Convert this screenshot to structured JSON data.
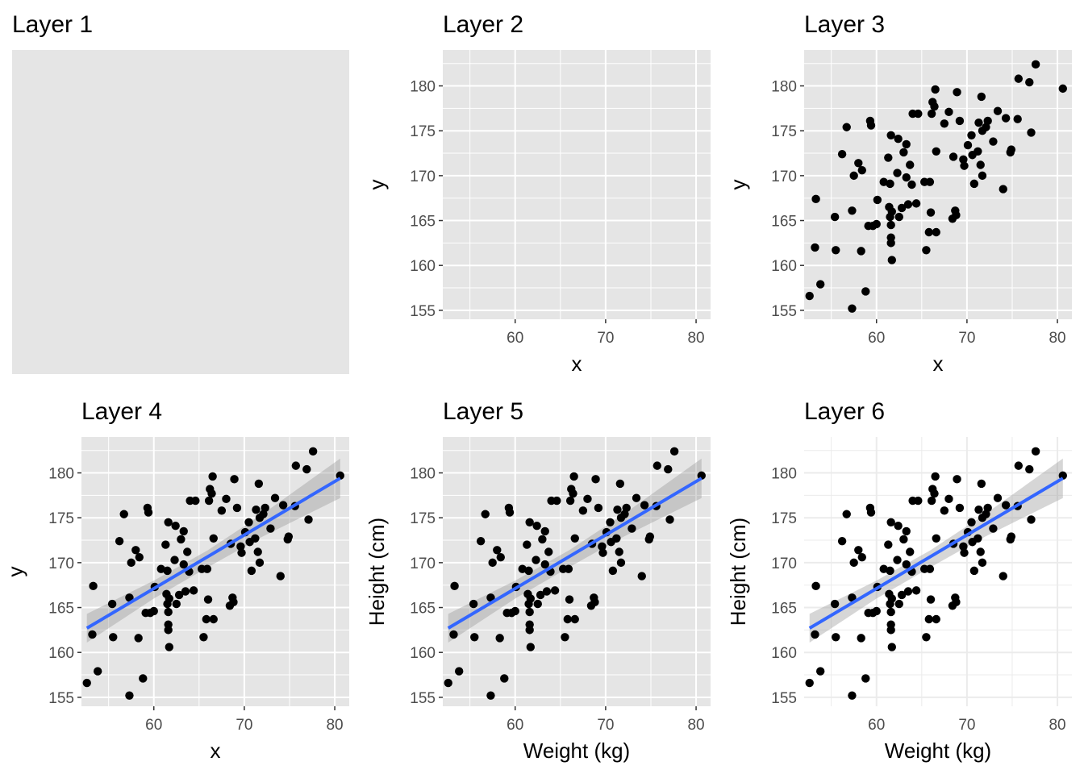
{
  "chart_data": {
    "type": "scatter",
    "x_ticks": [
      60,
      70,
      80
    ],
    "y_ticks": [
      155,
      160,
      165,
      170,
      175,
      180
    ],
    "xlim": [
      52,
      81.6
    ],
    "ylim": [
      154,
      184
    ],
    "points": [
      {
        "x": 52.6,
        "y": 156.6
      },
      {
        "x": 53.2,
        "y": 162.0
      },
      {
        "x": 53.3,
        "y": 167.4
      },
      {
        "x": 53.8,
        "y": 157.9
      },
      {
        "x": 55.4,
        "y": 165.4
      },
      {
        "x": 55.5,
        "y": 161.7
      },
      {
        "x": 56.2,
        "y": 172.4
      },
      {
        "x": 56.7,
        "y": 175.4
      },
      {
        "x": 57.3,
        "y": 155.2
      },
      {
        "x": 57.3,
        "y": 166.1
      },
      {
        "x": 57.5,
        "y": 170.0
      },
      {
        "x": 58.0,
        "y": 171.4
      },
      {
        "x": 58.3,
        "y": 161.6
      },
      {
        "x": 58.4,
        "y": 170.6
      },
      {
        "x": 58.8,
        "y": 157.1
      },
      {
        "x": 59.1,
        "y": 164.4
      },
      {
        "x": 59.3,
        "y": 176.1
      },
      {
        "x": 59.4,
        "y": 175.6
      },
      {
        "x": 59.6,
        "y": 164.4
      },
      {
        "x": 60.0,
        "y": 164.6
      },
      {
        "x": 60.1,
        "y": 167.3
      },
      {
        "x": 60.8,
        "y": 169.3
      },
      {
        "x": 61.3,
        "y": 172.0
      },
      {
        "x": 61.4,
        "y": 166.5
      },
      {
        "x": 61.5,
        "y": 165.4
      },
      {
        "x": 61.6,
        "y": 164.5
      },
      {
        "x": 61.6,
        "y": 163.1
      },
      {
        "x": 61.6,
        "y": 162.5
      },
      {
        "x": 61.7,
        "y": 160.6
      },
      {
        "x": 61.6,
        "y": 174.5
      },
      {
        "x": 61.5,
        "y": 169.1
      },
      {
        "x": 61.7,
        "y": 166.0
      },
      {
        "x": 62.4,
        "y": 174.1
      },
      {
        "x": 62.3,
        "y": 170.3
      },
      {
        "x": 62.5,
        "y": 165.4
      },
      {
        "x": 62.8,
        "y": 166.4
      },
      {
        "x": 63.0,
        "y": 172.6
      },
      {
        "x": 63.3,
        "y": 173.5
      },
      {
        "x": 63.3,
        "y": 169.8
      },
      {
        "x": 63.5,
        "y": 166.8
      },
      {
        "x": 63.7,
        "y": 171.2
      },
      {
        "x": 63.9,
        "y": 169.0
      },
      {
        "x": 64.0,
        "y": 176.9
      },
      {
        "x": 64.4,
        "y": 166.9
      },
      {
        "x": 64.6,
        "y": 176.9
      },
      {
        "x": 65.3,
        "y": 169.3
      },
      {
        "x": 65.5,
        "y": 161.7
      },
      {
        "x": 65.8,
        "y": 163.7
      },
      {
        "x": 65.9,
        "y": 169.3
      },
      {
        "x": 66.0,
        "y": 165.9
      },
      {
        "x": 66.1,
        "y": 176.9
      },
      {
        "x": 66.2,
        "y": 178.2
      },
      {
        "x": 66.4,
        "y": 177.7
      },
      {
        "x": 66.5,
        "y": 179.6
      },
      {
        "x": 66.6,
        "y": 172.7
      },
      {
        "x": 66.6,
        "y": 163.7
      },
      {
        "x": 67.5,
        "y": 175.8
      },
      {
        "x": 68.0,
        "y": 177.1
      },
      {
        "x": 68.4,
        "y": 165.2
      },
      {
        "x": 68.5,
        "y": 172.1
      },
      {
        "x": 68.7,
        "y": 166.1
      },
      {
        "x": 68.8,
        "y": 165.6
      },
      {
        "x": 68.9,
        "y": 179.3
      },
      {
        "x": 69.2,
        "y": 176.1
      },
      {
        "x": 69.6,
        "y": 171.8
      },
      {
        "x": 69.7,
        "y": 171.1
      },
      {
        "x": 70.1,
        "y": 173.4
      },
      {
        "x": 70.5,
        "y": 174.5
      },
      {
        "x": 70.6,
        "y": 172.3
      },
      {
        "x": 70.8,
        "y": 169.1
      },
      {
        "x": 71.2,
        "y": 172.7
      },
      {
        "x": 71.3,
        "y": 175.9
      },
      {
        "x": 71.5,
        "y": 171.2
      },
      {
        "x": 71.6,
        "y": 178.8
      },
      {
        "x": 71.7,
        "y": 170.0
      },
      {
        "x": 71.7,
        "y": 175.0
      },
      {
        "x": 72.1,
        "y": 175.4
      },
      {
        "x": 72.3,
        "y": 176.1
      },
      {
        "x": 72.9,
        "y": 173.8
      },
      {
        "x": 73.4,
        "y": 177.2
      },
      {
        "x": 74.0,
        "y": 168.5
      },
      {
        "x": 74.3,
        "y": 176.4
      },
      {
        "x": 74.8,
        "y": 172.6
      },
      {
        "x": 74.9,
        "y": 172.9
      },
      {
        "x": 75.6,
        "y": 176.3
      },
      {
        "x": 75.7,
        "y": 180.8
      },
      {
        "x": 76.9,
        "y": 180.4
      },
      {
        "x": 77.1,
        "y": 174.8
      },
      {
        "x": 77.6,
        "y": 182.4
      },
      {
        "x": 80.6,
        "y": 179.7
      }
    ],
    "fit": {
      "x": [
        52.6,
        80.6
      ],
      "y": [
        162.7,
        179.4
      ]
    },
    "band": {
      "x": [
        52.6,
        60,
        66,
        72,
        80.6
      ],
      "lower": [
        161.1,
        166.0,
        169.5,
        172.9,
        177.2
      ],
      "upper": [
        164.3,
        168.0,
        171.4,
        175.4,
        181.6
      ]
    },
    "colors": {
      "panel": "#e5e5e5",
      "grid": "#ffffff",
      "classic_grid": "#ebebeb",
      "point": "#000000",
      "fit_line": "#3366ff",
      "band": "#999999",
      "axis_text": "#4d4d4d"
    },
    "panels": [
      {
        "title": "Layer 1",
        "xlabel": "",
        "ylabel": "",
        "show_axes": false,
        "show_points": false,
        "show_fit": false,
        "theme": "gray"
      },
      {
        "title": "Layer 2",
        "xlabel": "x",
        "ylabel": "y",
        "show_axes": true,
        "show_points": false,
        "show_fit": false,
        "theme": "gray"
      },
      {
        "title": "Layer 3",
        "xlabel": "x",
        "ylabel": "y",
        "show_axes": true,
        "show_points": true,
        "show_fit": false,
        "theme": "gray"
      },
      {
        "title": "Layer 4",
        "xlabel": "x",
        "ylabel": "y",
        "show_axes": true,
        "show_points": true,
        "show_fit": true,
        "theme": "gray"
      },
      {
        "title": "Layer 5",
        "xlabel": "Weight (kg)",
        "ylabel": "Height (cm)",
        "show_axes": true,
        "show_points": true,
        "show_fit": true,
        "theme": "gray"
      },
      {
        "title": "Layer 6",
        "xlabel": "Weight (kg)",
        "ylabel": "Height (cm)",
        "show_axes": true,
        "show_points": true,
        "show_fit": true,
        "theme": "minimal"
      }
    ]
  }
}
